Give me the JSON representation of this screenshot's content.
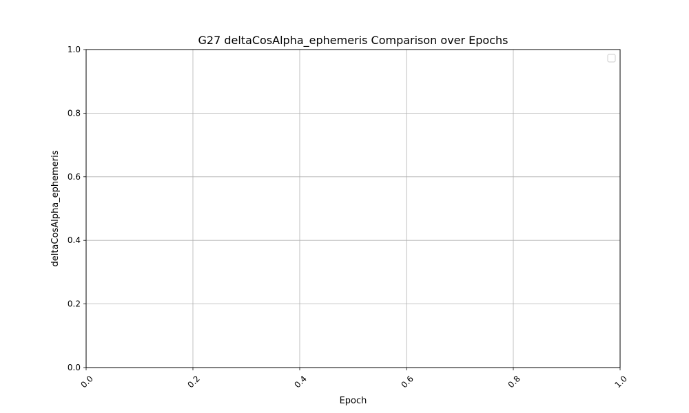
{
  "chart_data": {
    "type": "line",
    "title": "G27 deltaCosAlpha_ephemeris Comparison over Epochs",
    "xlabel": "Epoch",
    "ylabel": "deltaCosAlpha_ephemeris",
    "xlim": [
      0.0,
      1.0
    ],
    "ylim": [
      0.0,
      1.0
    ],
    "x_ticks": [
      "0.0",
      "0.2",
      "0.4",
      "0.6",
      "0.8",
      "1.0"
    ],
    "y_ticks": [
      "0.0",
      "0.2",
      "0.4",
      "0.6",
      "0.8",
      "1.0"
    ],
    "x_tick_rotation_deg": 45,
    "grid": true,
    "legend": {
      "placement": "top-right",
      "entries": []
    },
    "series": []
  }
}
